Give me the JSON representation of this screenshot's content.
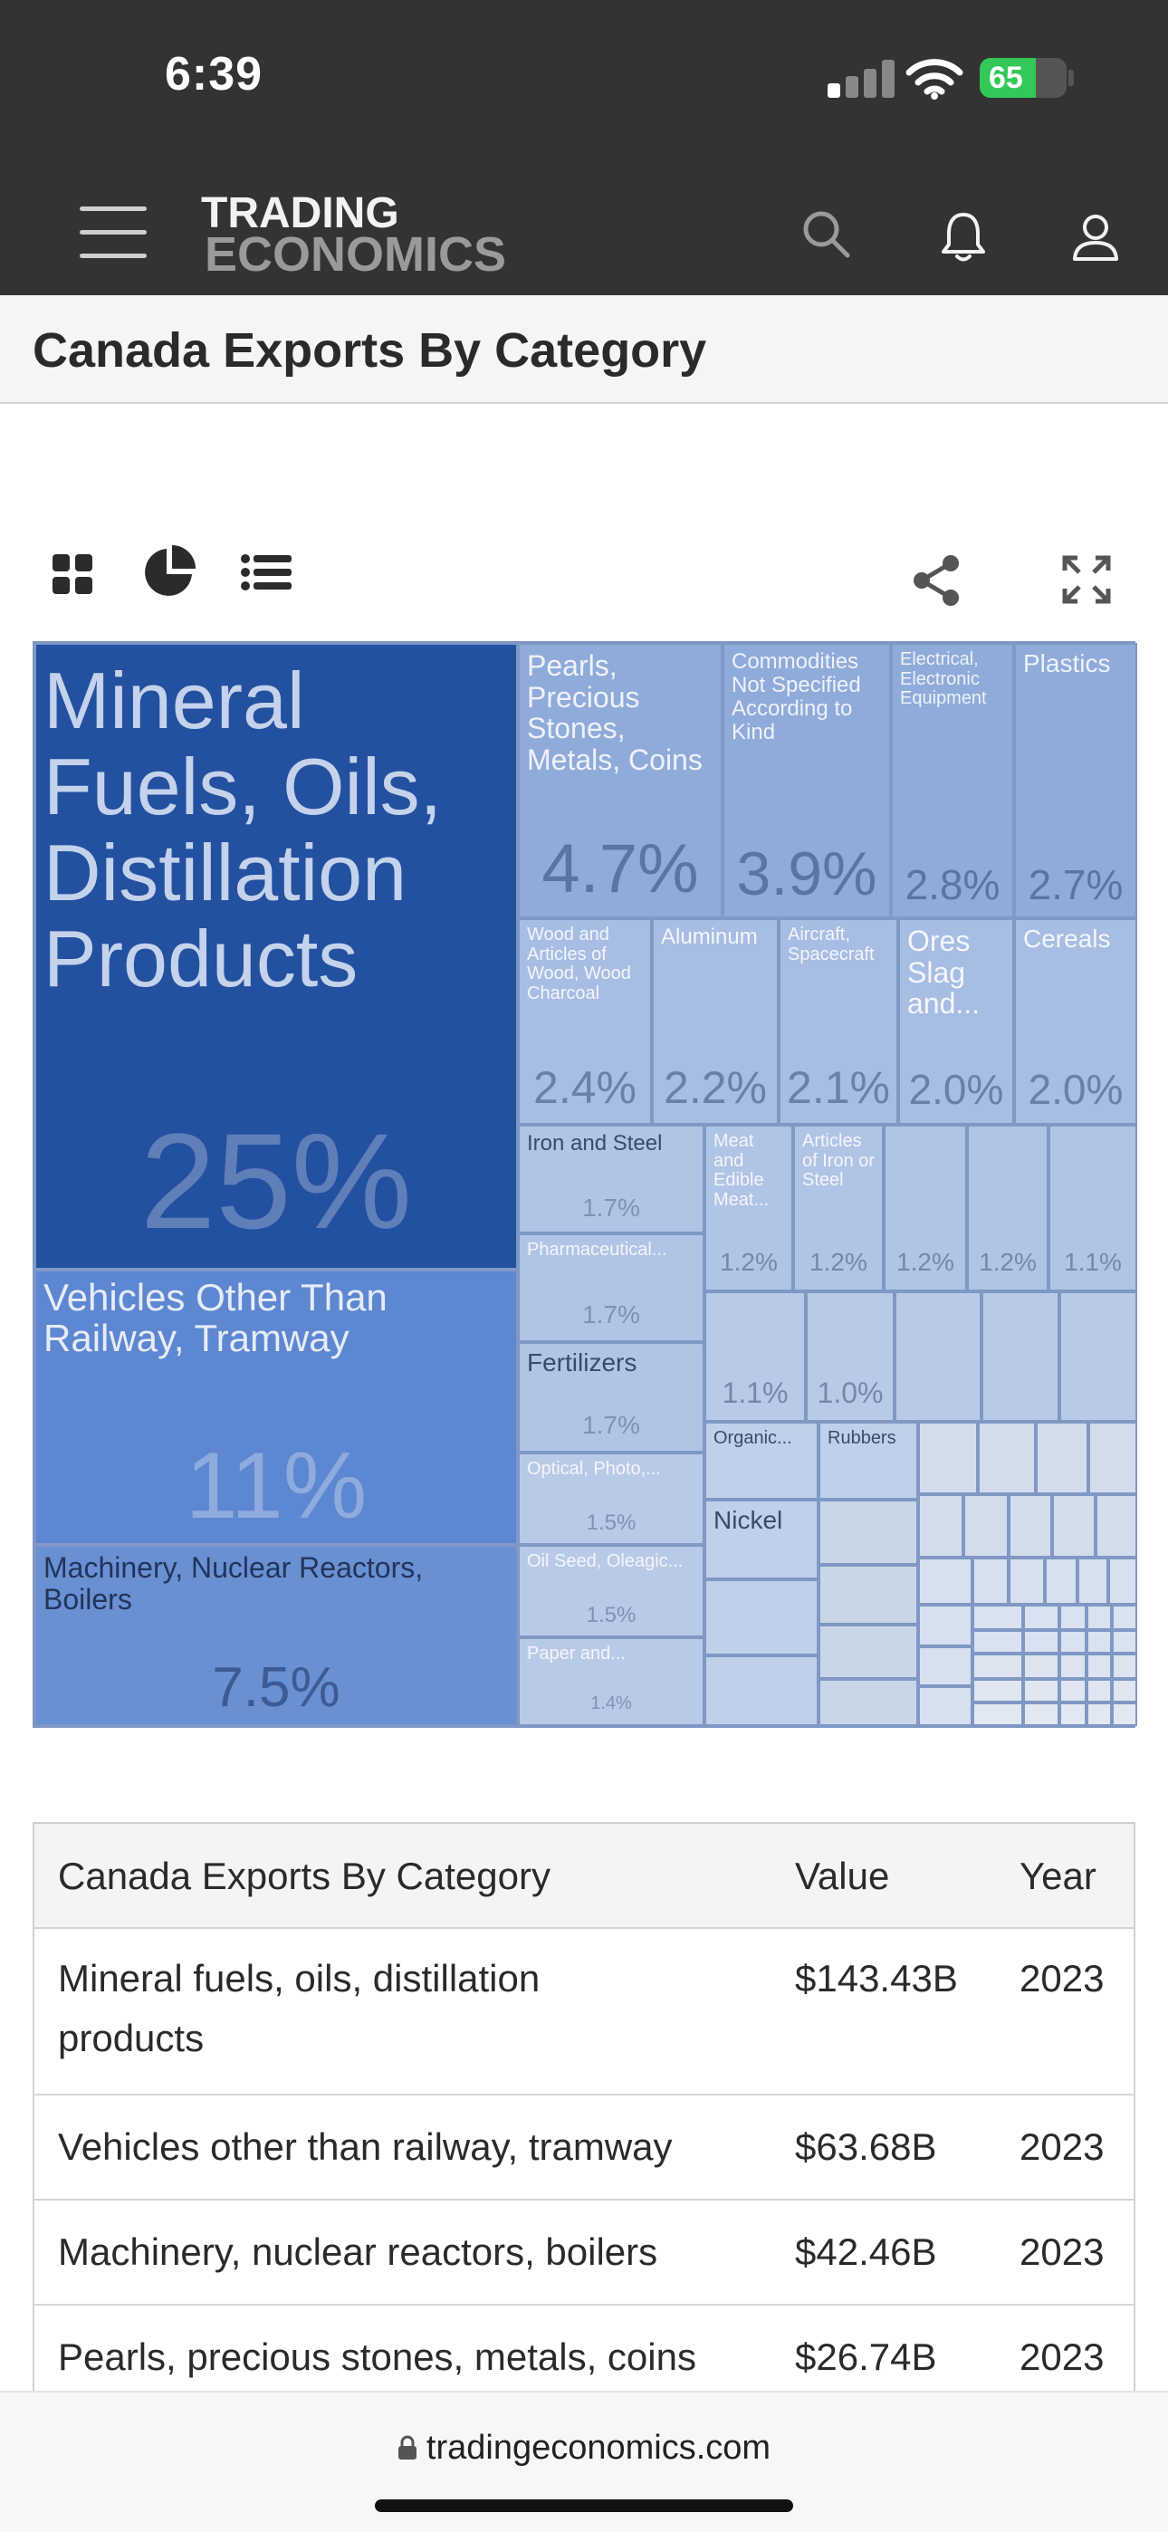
{
  "status_bar": {
    "time": "6:39",
    "battery": "65",
    "battery_level": 0.65
  },
  "header": {
    "logo_line1": "TRADING",
    "logo_line2": "ECONOMICS",
    "icons": [
      "menu-icon",
      "search-icon",
      "bell-icon",
      "user-icon"
    ]
  },
  "page": {
    "title": "Canada Exports By Category"
  },
  "toolbar": {
    "icons": [
      "grid-view-icon",
      "pie-chart-icon",
      "list-view-icon",
      "share-icon",
      "fullscreen-icon"
    ]
  },
  "treemap": {
    "colors": {
      "dark": "#23509f",
      "mid": "#5d87d1",
      "light": "#8fabd9",
      "pale": "#b0c4e5",
      "faint": "#c9d6e8"
    },
    "cells": [
      {
        "label": "Mineral Fuels, Oils, Distillation Products",
        "pct": "25%"
      },
      {
        "label": "Vehicles Other Than Railway, Tramway",
        "pct": "11%"
      },
      {
        "label": "Machinery, Nuclear Reactors, Boilers",
        "pct": "7.5%"
      },
      {
        "label": "Pearls, Precious Stones, Metals, Coins",
        "pct": "4.7%"
      },
      {
        "label": "Commodities Not Specified According to Kind",
        "pct": "3.9%"
      },
      {
        "label": "Electrical, Electronic Equipment",
        "pct": "2.8%"
      },
      {
        "label": "Plastics",
        "pct": "2.7%"
      },
      {
        "label": "Wood and Articles of Wood, Wood Charcoal",
        "pct": "2.4%"
      },
      {
        "label": "Aluminum",
        "pct": "2.2%"
      },
      {
        "label": "Aircraft, Spacecraft",
        "pct": "2.1%"
      },
      {
        "label": "Ores Slag and...",
        "pct": "2.0%"
      },
      {
        "label": "Cereals",
        "pct": "2.0%"
      },
      {
        "label": "Iron and Steel",
        "pct": "1.7%"
      },
      {
        "label": "Meat and Edible Meat...",
        "pct": "1.2%"
      },
      {
        "label": "Articles of Iron or Steel",
        "pct": "1.2%"
      },
      {
        "label": "",
        "pct": "1.2%"
      },
      {
        "label": "",
        "pct": "1.2%"
      },
      {
        "label": "",
        "pct": "1.1%"
      },
      {
        "label": "Pharmaceutical...",
        "pct": "1.7%"
      },
      {
        "label": "Fertilizers",
        "pct": "1.7%"
      },
      {
        "label": "",
        "pct": "1.1%"
      },
      {
        "label": "",
        "pct": "1.0%"
      },
      {
        "label": "Optical, Photo,...",
        "pct": "1.5%"
      },
      {
        "label": "Organic...",
        "pct": ""
      },
      {
        "label": "Rubbers",
        "pct": ""
      },
      {
        "label": "Nickel",
        "pct": ""
      },
      {
        "label": "Oil Seed, Oleagic...",
        "pct": "1.5%"
      },
      {
        "label": "Paper and...",
        "pct": "1.4%"
      }
    ]
  },
  "table": {
    "headers": [
      "Canada Exports By Category",
      "Value",
      "Year"
    ],
    "rows": [
      [
        "Mineral fuels, oils, distillation products",
        "$143.43B",
        "2023"
      ],
      [
        "Vehicles other than railway, tramway",
        "$63.68B",
        "2023"
      ],
      [
        "Machinery, nuclear reactors, boilers",
        "$42.46B",
        "2023"
      ],
      [
        "Pearls, precious stones, metals, coins",
        "$26.74B",
        "2023"
      ]
    ]
  },
  "browser": {
    "url": "tradingeconomics.com"
  }
}
